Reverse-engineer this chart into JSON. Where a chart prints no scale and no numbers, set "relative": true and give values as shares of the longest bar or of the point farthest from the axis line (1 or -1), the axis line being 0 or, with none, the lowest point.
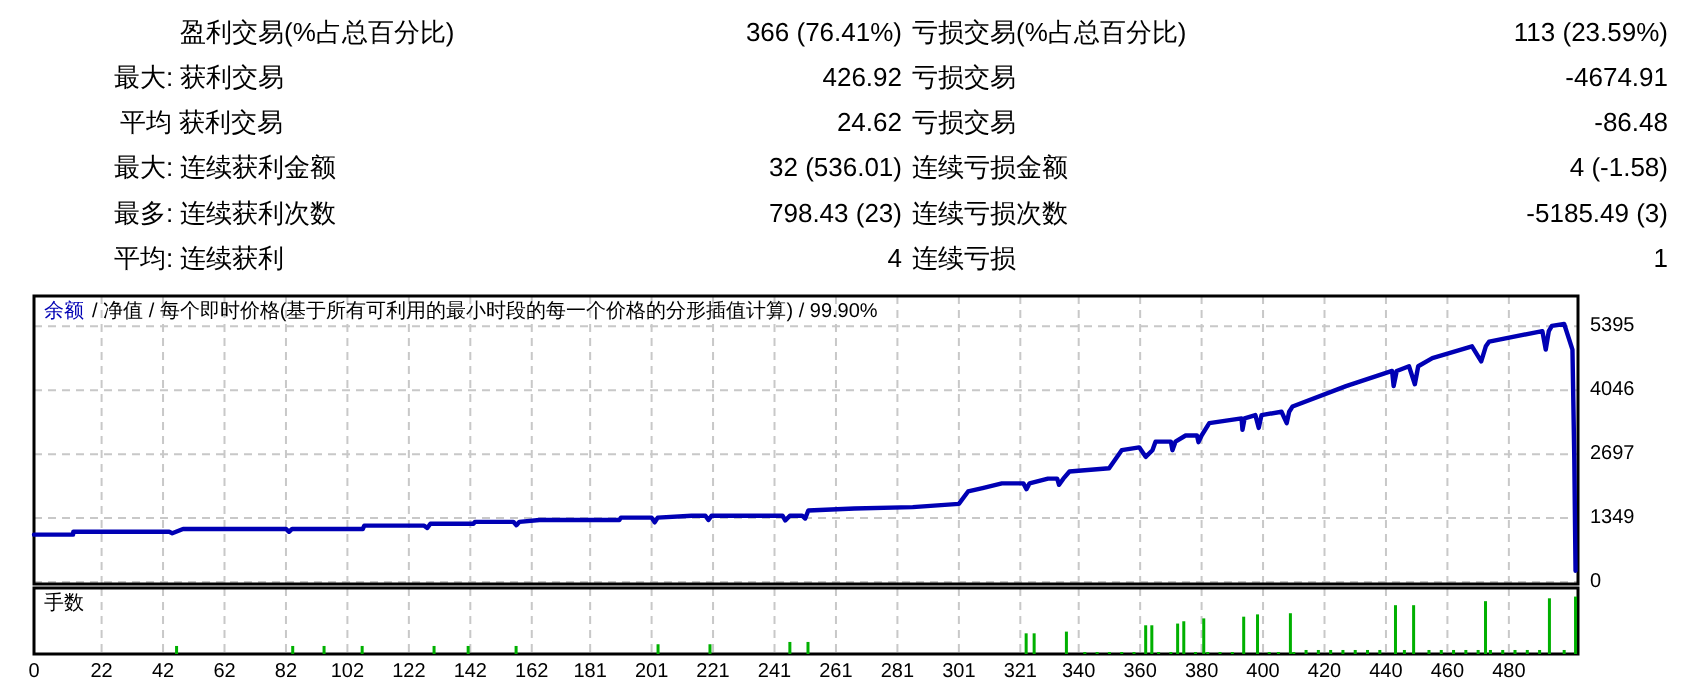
{
  "chart_data": [
    {
      "type": "other",
      "categories": [
        "盈利交易(%占总百分比)",
        "最大: 获利交易",
        "平均 获利交易",
        "最大: 连续获利金额",
        "最多: 连续获利次数",
        "平均: 连续获利"
      ],
      "annotations": [
        "366 (76.41%)",
        "亏损交易(%占总百分比)",
        "113 (23.59%)",
        "426.92",
        "亏损交易",
        "-4674.91",
        "24.62",
        "亏损交易",
        "-86.48",
        "32 (536.01)",
        "连续亏损金额",
        "4 (-1.58)",
        "798.43 (23)",
        "连续亏损次数",
        "-5185.49 (3)",
        "4",
        "连续亏损",
        "1"
      ]
    },
    {
      "type": "line",
      "title": "/ 净值 / 每个即时价格(基于所有可利用的最小时段的每一个价格的分形插值计算) / 99.90%",
      "legend": "top left",
      "grid": true,
      "tick_labels": "y",
      "xlim": [
        0,
        502.5
      ],
      "xticks": [
        0,
        22,
        42,
        62,
        82,
        102,
        122,
        142,
        162,
        181,
        201,
        221,
        241,
        261,
        281,
        301,
        321,
        340,
        360,
        380,
        400,
        420,
        440,
        460,
        480
      ],
      "ylim": [
        -40,
        6030
      ],
      "yticks": [
        0,
        1349,
        2697,
        4046,
        5395
      ],
      "series": [
        {
          "name": "余额",
          "color": "#0000b4",
          "x": [
            0,
            12.7,
            12.8,
            44,
            45,
            48.5,
            82,
            83,
            84,
            107,
            107.5,
            127,
            128,
            129,
            143,
            143.5,
            156,
            157,
            158,
            164.5,
            190.5,
            191,
            201,
            202,
            203,
            214,
            218.5,
            219.5,
            220.5,
            243.6,
            244.5,
            246,
            250,
            251,
            252,
            267,
            286,
            301,
            304,
            308.7,
            315,
            322,
            323,
            324,
            330,
            333,
            333.6,
            335,
            337,
            349.9,
            354,
            359.7,
            361.8,
            364,
            365,
            370,
            370.5,
            371.5,
            374.8,
            378.5,
            379,
            380,
            382.5,
            393,
            393.3,
            394,
            397.5,
            398.6,
            399.5,
            406,
            407.7,
            408.5,
            409.6,
            427,
            442,
            442.5,
            443.5,
            447.5,
            449.4,
            450.5,
            455.1,
            468,
            471,
            472.5,
            473.6,
            490.9,
            492,
            493,
            494,
            498,
            500.7,
            501.3,
            501.7
          ],
          "values": [
            1000,
            1000,
            1060,
            1060,
            1030,
            1120,
            1120,
            1060,
            1120,
            1120,
            1190,
            1190,
            1140,
            1230,
            1230,
            1270,
            1270,
            1200,
            1270,
            1310,
            1310,
            1360,
            1360,
            1260,
            1360,
            1400,
            1400,
            1310,
            1400,
            1400,
            1300,
            1400,
            1400,
            1340,
            1510,
            1550,
            1580,
            1650,
            1910,
            1980,
            2080,
            2080,
            1960,
            2080,
            2180,
            2180,
            2050,
            2180,
            2330,
            2400,
            2780,
            2840,
            2640,
            2780,
            2960,
            2960,
            2780,
            2960,
            3090,
            3090,
            2950,
            3090,
            3350,
            3450,
            3210,
            3450,
            3520,
            3250,
            3520,
            3590,
            3350,
            3590,
            3700,
            4130,
            4450,
            4130,
            4450,
            4550,
            4170,
            4550,
            4720,
            4970,
            4650,
            4970,
            5070,
            5290,
            4900,
            5290,
            5400,
            5440,
            4900,
            2570,
            240
          ]
        }
      ]
    },
    {
      "type": "bar",
      "title": "手数",
      "relative": true,
      "grid": "x",
      "tick_labels": "x",
      "xlim": [
        0,
        502.5
      ],
      "xticks": [
        0,
        22,
        42,
        62,
        82,
        102,
        122,
        142,
        162,
        181,
        201,
        221,
        241,
        261,
        281,
        301,
        321,
        340,
        360,
        380,
        400,
        420,
        440,
        460,
        480
      ],
      "series": [
        {
          "color": "#00b000",
          "x": [
            46.4,
            84.2,
            94.4,
            106.8,
            130.2,
            141.3,
            156.9,
            203.1,
            220,
            246,
            251.9,
            322.9,
            325.5,
            336,
            342,
            346,
            350,
            354,
            358,
            361.8,
            363.8,
            366,
            370,
            372.2,
            374.2,
            378,
            380.7,
            382,
            386,
            390,
            393.7,
            398.2,
            402,
            405,
            408.9,
            410,
            414,
            418,
            422,
            426,
            430,
            434,
            438,
            443.1,
            446,
            449,
            454,
            458,
            462,
            466,
            470,
            472.4,
            474,
            478,
            482,
            486,
            490,
            493.2,
            498,
            501.7
          ],
          "values": [
            0.14,
            0.14,
            0.14,
            0.14,
            0.14,
            0.14,
            0.14,
            0.17,
            0.17,
            0.21,
            0.21,
            0.36,
            0.36,
            0.39,
            0.035,
            0.035,
            0.035,
            0.035,
            0.035,
            0.5,
            0.5,
            0.035,
            0.035,
            0.53,
            0.57,
            0.035,
            0.62,
            0.035,
            0.035,
            0.035,
            0.65,
            0.69,
            0.035,
            0.035,
            0.71,
            0.035,
            0.07,
            0.07,
            0.07,
            0.07,
            0.07,
            0.07,
            0.07,
            0.85,
            0.07,
            0.85,
            0.07,
            0.07,
            0.07,
            0.07,
            0.07,
            0.92,
            0.07,
            0.07,
            0.07,
            0.07,
            0.07,
            0.97,
            0.07,
            1
          ]
        }
      ]
    }
  ]
}
